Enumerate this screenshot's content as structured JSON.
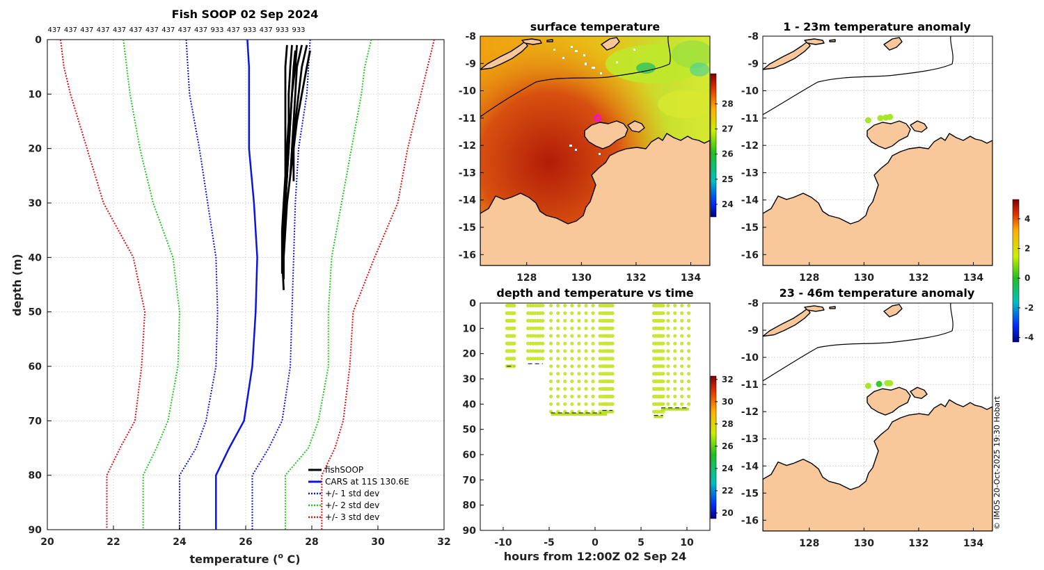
{
  "colors": {
    "black": "#000000",
    "blue": "#0a14e6",
    "green": "#20c820",
    "red": "#e01010",
    "land": "#f8c89a",
    "grid": "#cccccc",
    "sst_warm": "#c42a0a",
    "sst_mid": "#f0a000",
    "point": "#c8e632"
  },
  "chart_data": [
    {
      "id": "profile",
      "type": "line",
      "title": "Fish SOOP 02 Sep 2024",
      "xlabel": "temperature (",
      "xlabel_sup": "o",
      "xlabel_end": " C)",
      "ylabel": "depth (m)",
      "xlim": [
        20,
        32
      ],
      "ylim": [
        0,
        90
      ],
      "xticks": [
        "20",
        "22",
        "24",
        "26",
        "28",
        "30",
        "32"
      ],
      "yticks": [
        "0",
        "10",
        "20",
        "30",
        "40",
        "50",
        "60",
        "70",
        "80",
        "90"
      ],
      "top_labels": [
        "437",
        "437",
        "437",
        "437",
        "437",
        "437",
        "437",
        "437",
        "437",
        "437",
        "933",
        "437",
        "933",
        "437",
        "933",
        "933"
      ],
      "legend": [
        {
          "label": "fishSOOP",
          "color": "#000000",
          "style": "solid"
        },
        {
          "label": "CARS at 11S 130.6E",
          "color": "#0a14e6",
          "style": "solid"
        },
        {
          "label": "+/- 1 std dev",
          "color": "#0a14e6",
          "style": "dotted"
        },
        {
          "label": "+/- 2 std dev",
          "color": "#20c820",
          "style": "dotted"
        },
        {
          "label": "+/- 3 std dev",
          "color": "#e01010",
          "style": "dotted"
        }
      ],
      "depths": [
        0,
        5,
        10,
        20,
        30,
        40,
        50,
        60,
        70,
        75,
        80,
        90
      ],
      "cars_mean": [
        26.05,
        26.1,
        26.1,
        26.1,
        26.25,
        26.35,
        26.3,
        26.2,
        25.95,
        25.5,
        25.1,
        25.1
      ],
      "std1": {
        "minus": [
          24.2,
          24.25,
          24.3,
          24.6,
          24.85,
          25.1,
          25.15,
          25.1,
          24.8,
          24.5,
          24.0,
          24.0
        ],
        "plus": [
          27.95,
          27.9,
          27.85,
          27.6,
          27.5,
          27.45,
          27.4,
          27.35,
          27.1,
          26.7,
          26.2,
          26.2
        ]
      },
      "std2": {
        "minus": [
          22.3,
          22.4,
          22.5,
          22.8,
          23.2,
          23.8,
          24.0,
          23.95,
          23.65,
          23.3,
          22.9,
          22.9
        ],
        "plus": [
          29.8,
          29.6,
          29.5,
          29.2,
          28.9,
          28.6,
          28.5,
          28.5,
          28.2,
          27.9,
          27.2,
          27.2
        ]
      },
      "std3": {
        "minus": [
          20.4,
          20.5,
          20.7,
          21.2,
          21.7,
          22.6,
          22.95,
          22.85,
          22.65,
          22.2,
          21.8,
          21.8
        ],
        "plus": [
          31.7,
          31.5,
          31.3,
          30.9,
          30.6,
          29.9,
          29.25,
          29.15,
          28.95,
          28.7,
          28.3,
          28.3
        ]
      },
      "fish_casts": [
        {
          "depths": [
            1,
            5,
            10,
            15,
            20,
            25,
            30,
            35,
            40,
            43
          ],
          "temps": [
            27.25,
            27.2,
            27.2,
            27.2,
            27.2,
            27.2,
            27.15,
            27.1,
            27.1,
            27.1
          ]
        },
        {
          "depths": [
            1,
            5,
            10,
            15,
            20,
            25,
            30,
            35,
            40,
            44
          ],
          "temps": [
            27.4,
            27.35,
            27.3,
            27.3,
            27.25,
            27.25,
            27.2,
            27.15,
            27.15,
            27.15
          ]
        },
        {
          "depths": [
            1,
            5,
            10,
            15,
            20,
            25,
            30,
            35,
            40,
            46
          ],
          "temps": [
            27.55,
            27.5,
            27.4,
            27.35,
            27.3,
            27.25,
            27.2,
            27.15,
            27.1,
            27.15
          ]
        },
        {
          "depths": [
            1,
            5,
            10,
            15,
            20,
            25
          ],
          "temps": [
            27.7,
            27.55,
            27.5,
            27.45,
            27.4,
            27.35
          ]
        },
        {
          "depths": [
            1,
            5,
            10,
            15,
            20,
            26
          ],
          "temps": [
            27.85,
            27.7,
            27.6,
            27.5,
            27.45,
            27.45
          ]
        },
        {
          "depths": [
            2,
            5,
            10,
            15,
            20,
            25,
            30,
            35,
            40,
            43
          ],
          "temps": [
            27.95,
            27.85,
            27.7,
            27.55,
            27.45,
            27.35,
            27.25,
            27.2,
            27.15,
            27.15
          ]
        },
        {
          "depths": [
            2,
            5,
            10,
            15,
            20,
            25,
            30,
            33
          ],
          "temps": [
            27.5,
            27.45,
            27.4,
            27.35,
            27.3,
            27.25,
            27.2,
            27.2
          ]
        }
      ]
    },
    {
      "id": "sst_map",
      "type": "heatmap",
      "title": "surface temperature",
      "xlim": [
        126.3,
        134.7
      ],
      "ylim": [
        -16.4,
        -8
      ],
      "xticks": [
        "128",
        "130",
        "132",
        "134"
      ],
      "yticks": [
        "-8",
        "-9",
        "-10",
        "-11",
        "-12",
        "-13",
        "-14",
        "-15",
        "-16"
      ],
      "colorbar_ticks": [
        "28",
        "27",
        "26",
        "25",
        "24"
      ],
      "colorbar_range": [
        23.5,
        29.2
      ],
      "marker_lon": 130.6,
      "marker_lat": -11
    },
    {
      "id": "anomaly_1_23",
      "type": "scatter",
      "title": "1 - 23m temperature anomaly",
      "xlim": [
        126.3,
        134.7
      ],
      "ylim": [
        -16.4,
        -8
      ],
      "xticks": [
        "128",
        "130",
        "132",
        "134"
      ],
      "yticks": [
        "-8",
        "-9",
        "-10",
        "-11",
        "-12",
        "-13",
        "-14",
        "-15",
        "-16"
      ],
      "points": [
        {
          "lon": 130.15,
          "lat": -11.08
        },
        {
          "lon": 130.6,
          "lat": -11.0
        },
        {
          "lon": 130.8,
          "lat": -10.98
        },
        {
          "lon": 130.95,
          "lat": -10.96
        }
      ]
    },
    {
      "id": "anomaly_23_46",
      "type": "scatter",
      "title": "23 - 46m temperature anomaly",
      "xlim": [
        126.3,
        134.7
      ],
      "ylim": [
        -16.4,
        -8
      ],
      "xticks": [
        "128",
        "130",
        "132",
        "134"
      ],
      "yticks": [
        "-8",
        "-9",
        "-10",
        "-11",
        "-12",
        "-13",
        "-14",
        "-15",
        "-16"
      ],
      "points": [
        {
          "lon": 130.15,
          "lat": -11.05
        },
        {
          "lon": 130.55,
          "lat": -10.98
        },
        {
          "lon": 130.85,
          "lat": -10.95
        },
        {
          "lon": 130.95,
          "lat": -10.95
        }
      ],
      "colorbar_ticks": [
        "4",
        "2",
        "0",
        "-2",
        "-4"
      ],
      "colorbar_range": [
        -4.3,
        5.3
      ]
    },
    {
      "id": "depth_time",
      "type": "scatter",
      "title": "depth and temperature vs time",
      "xlabel": "hours from 12:00Z 02 Sep 24",
      "xlim": [
        -12.5,
        12.5
      ],
      "ylim": [
        0,
        90
      ],
      "xticks": [
        "-10",
        "-5",
        "0",
        "5",
        "10"
      ],
      "yticks": [
        "0",
        "10",
        "20",
        "30",
        "40",
        "50",
        "60",
        "70",
        "80",
        "90"
      ],
      "colorbar_ticks": [
        "32",
        "30",
        "28",
        "26",
        "24",
        "22",
        "20"
      ],
      "colorbar_range": [
        19.5,
        32.3
      ],
      "casts": [
        {
          "t0": -9.6,
          "t1": -8.8,
          "max": 25
        },
        {
          "t0": -7.3,
          "t1": -5.7,
          "max": 24
        },
        {
          "t0": -4.8,
          "t1": 1.3,
          "max": 44
        },
        {
          "t0": 0.8,
          "t1": 1.9,
          "max": 43
        },
        {
          "t0": 6.4,
          "t1": 7.4,
          "max": 45
        },
        {
          "t0": 7.2,
          "t1": 10.2,
          "max": 42
        }
      ]
    }
  ],
  "credit": "© IMOS 20-Oct-2025 19:30 Hobart"
}
